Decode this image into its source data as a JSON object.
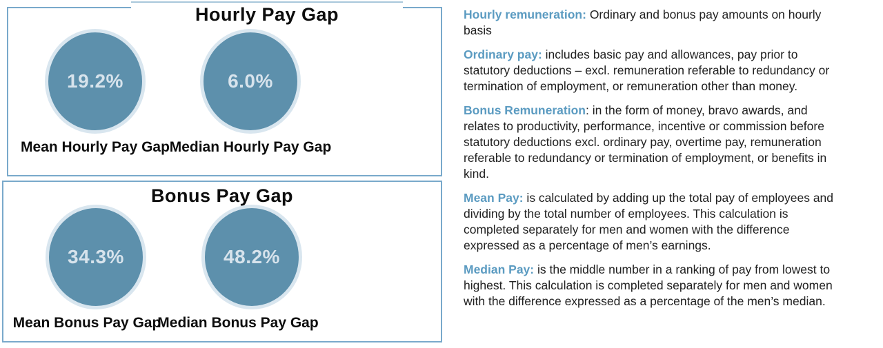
{
  "left_figure": {
    "panels": [
      {
        "title": "Hourly Pay Gap",
        "circles": [
          {
            "value": "19.2%",
            "label": "Mean Hourly Pay Gap"
          },
          {
            "value": "6.0%",
            "label": "Median Hourly Pay Gap"
          }
        ]
      },
      {
        "title": "Bonus Pay Gap",
        "circles": [
          {
            "value": "34.3%",
            "label": "Mean Bonus Pay Gap"
          },
          {
            "value": "48.2%",
            "label": "Median Bonus Pay Gap"
          }
        ]
      }
    ]
  },
  "definitions": [
    {
      "term": "Hourly remuneration:",
      "body": " Ordinary and bonus pay amounts on hourly basis"
    },
    {
      "term": "Ordinary pay:",
      "body": " includes basic pay and allowances, pay prior to statutory deductions – excl. remuneration referable to redundancy or termination of employment, or remuneration other than money."
    },
    {
      "term": "Bonus Remuneration",
      "body": ": in the form of money, bravo awards, and relates to productivity, performance, incentive or commission before statutory deductions excl. ordinary pay, overtime pay, remuneration referable to redundancy or termination of employment, or benefits in kind."
    },
    {
      "term": "Mean Pay:",
      "body": " is calculated by adding up the total pay of employees and dividing by the total number of employees. This calculation is completed separately for men and women with the difference expressed as a percentage of men’s earnings."
    },
    {
      "term": "Median Pay:",
      "body": " is the middle number in a ranking of pay from lowest to highest. This calculation is completed separately for men and women with the difference expressed as a percentage of the men’s median."
    }
  ],
  "colors": {
    "circle_fill": "#5D90AC",
    "circle_ring": "#D9E6EF",
    "value_text": "#D7E3EC",
    "panel_border": "#79A9CB",
    "term_blue": "#5B9BC1",
    "body_text": "#212121"
  },
  "chart_data": [
    {
      "type": "table",
      "title": "Hourly Pay Gap",
      "categories": [
        "Mean Hourly Pay Gap",
        "Median Hourly Pay Gap"
      ],
      "values": [
        19.2,
        6.0
      ],
      "unit": "%"
    },
    {
      "type": "table",
      "title": "Bonus Pay Gap",
      "categories": [
        "Mean Bonus Pay Gap",
        "Median Bonus Pay Gap"
      ],
      "values": [
        34.3,
        48.2
      ],
      "unit": "%"
    }
  ]
}
